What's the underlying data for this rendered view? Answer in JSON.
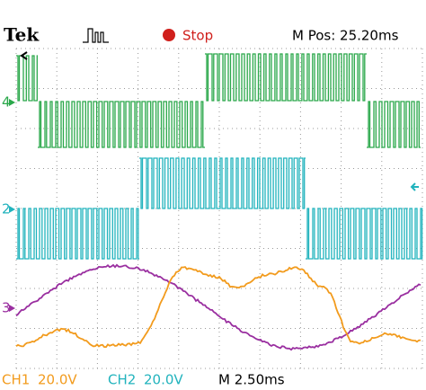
{
  "header": {
    "brand": "Tek",
    "status": "Stop",
    "position": "M Pos: 25.20ms"
  },
  "markers": {
    "ch4": "4",
    "ch2": "2",
    "ch3": "3"
  },
  "footer": {
    "ch1_label": "CH1",
    "ch1_scale": "20.0V",
    "ch2_label": "CH2",
    "ch2_scale": "20.0V",
    "timebase": "M 2.50ms"
  }
}
